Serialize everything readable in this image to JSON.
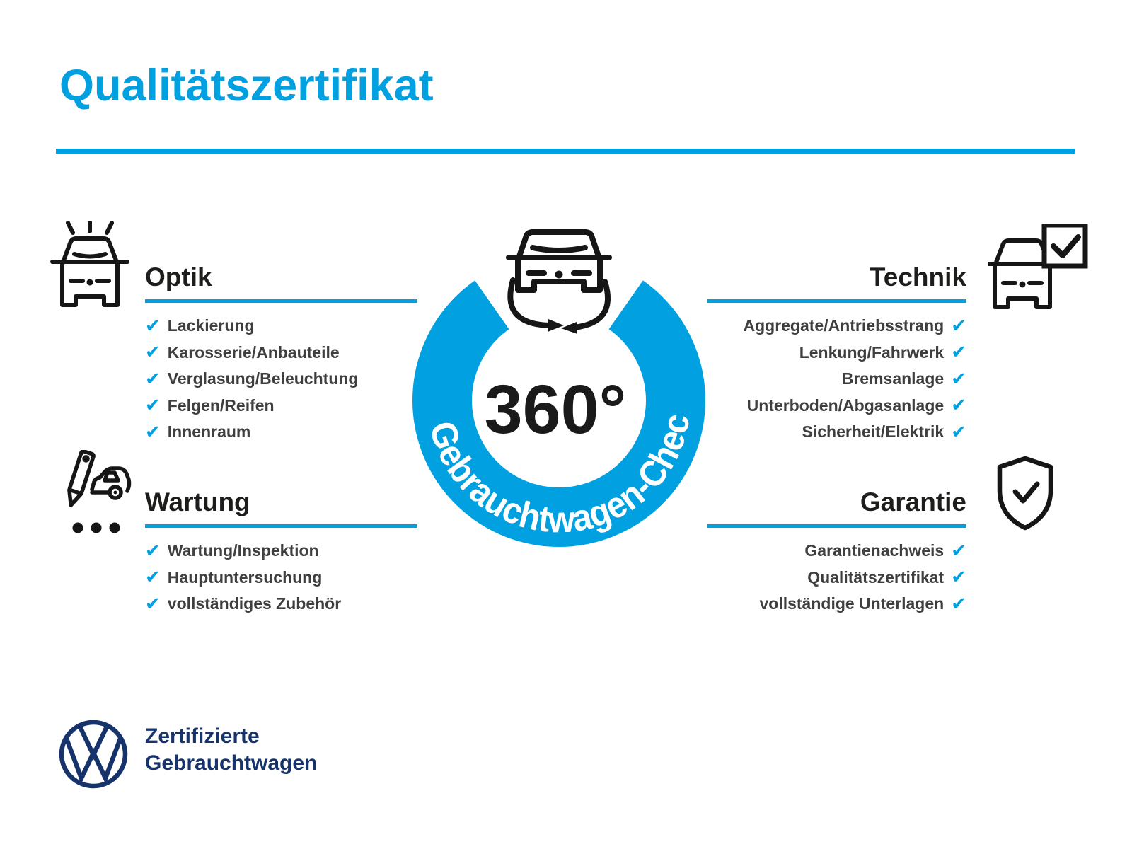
{
  "page": {
    "title": "Qualitätszertifikat"
  },
  "badge": {
    "degrees": "360°",
    "ring_label": "Gebrauchtwagen-Check"
  },
  "sections": {
    "optik": {
      "title": "Optik",
      "items": [
        "Lackierung",
        "Karosserie/Anbauteile",
        "Verglasung/Beleuchtung",
        "Felgen/Reifen",
        "Innenraum"
      ]
    },
    "wartung": {
      "title": "Wartung",
      "items": [
        "Wartung/Inspektion",
        "Hauptuntersuchung",
        "vollständiges Zubehör"
      ]
    },
    "technik": {
      "title": "Technik",
      "items": [
        "Aggregate/Antriebsstrang",
        "Lenkung/Fahrwerk",
        "Bremsanlage",
        "Unterboden/Abgasanlage",
        "Sicherheit/Elektrik"
      ]
    },
    "garantie": {
      "title": "Garantie",
      "items": [
        "Garantienachweis",
        "Qualitätszertifikat",
        "vollständige Unterlagen"
      ]
    }
  },
  "footer": {
    "brand_line1": "Zertifizierte",
    "brand_line2": "Gebrauchtwagen"
  },
  "icons": {
    "optik": "car-shine-icon",
    "wartung": "pencil-car-icon",
    "technik": "car-checkbox-icon",
    "garantie": "shield-check-icon",
    "badge": "car-rotate-icon",
    "footer": "vw-logo"
  },
  "check_glyph": "✔",
  "colors": {
    "accent_blue": "#00A0E1",
    "vw_navy": "#16336B",
    "heading_text": "#1D1D1B",
    "item_text": "#3F3F3F"
  }
}
